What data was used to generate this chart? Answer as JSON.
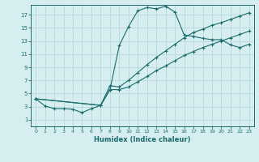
{
  "xlabel": "Humidex (Indice chaleur)",
  "ylabel": "",
  "bg_color": "#d6eef0",
  "grid_color": "#b8d8dc",
  "line_color": "#1a6b6b",
  "xlim": [
    -0.5,
    23.5
  ],
  "ylim": [
    0.0,
    18.5
  ],
  "xticks": [
    0,
    1,
    2,
    3,
    4,
    5,
    6,
    7,
    8,
    9,
    10,
    11,
    12,
    13,
    14,
    15,
    16,
    17,
    18,
    19,
    20,
    21,
    22,
    23
  ],
  "yticks": [
    1,
    3,
    5,
    7,
    9,
    11,
    13,
    15,
    17
  ],
  "lines": [
    {
      "x": [
        0,
        1,
        2,
        3,
        4,
        5,
        6,
        7,
        8,
        9,
        10,
        11,
        12,
        13,
        14,
        15,
        16,
        17,
        18,
        19,
        20,
        21,
        22,
        23
      ],
      "y": [
        4.2,
        3.1,
        2.7,
        2.7,
        2.6,
        2.1,
        2.7,
        3.2,
        5.6,
        12.3,
        15.2,
        17.6,
        18.1,
        17.9,
        18.3,
        17.4,
        13.9,
        13.7,
        13.4,
        13.2,
        13.2,
        12.4,
        12.0,
        12.5
      ]
    },
    {
      "x": [
        0,
        7,
        8,
        9,
        10,
        11,
        12,
        13,
        14,
        15,
        16,
        17,
        18,
        19,
        20,
        21,
        22,
        23
      ],
      "y": [
        4.2,
        3.2,
        6.2,
        6.0,
        7.0,
        8.2,
        9.4,
        10.5,
        11.5,
        12.5,
        13.5,
        14.3,
        14.8,
        15.4,
        15.8,
        16.3,
        16.8,
        17.3
      ]
    },
    {
      "x": [
        0,
        7,
        8,
        9,
        10,
        11,
        12,
        13,
        14,
        15,
        16,
        17,
        18,
        19,
        20,
        21,
        22,
        23
      ],
      "y": [
        4.2,
        3.2,
        5.6,
        5.6,
        6.0,
        6.8,
        7.6,
        8.5,
        9.2,
        10.0,
        10.8,
        11.4,
        12.0,
        12.5,
        13.0,
        13.5,
        14.0,
        14.5
      ]
    }
  ]
}
